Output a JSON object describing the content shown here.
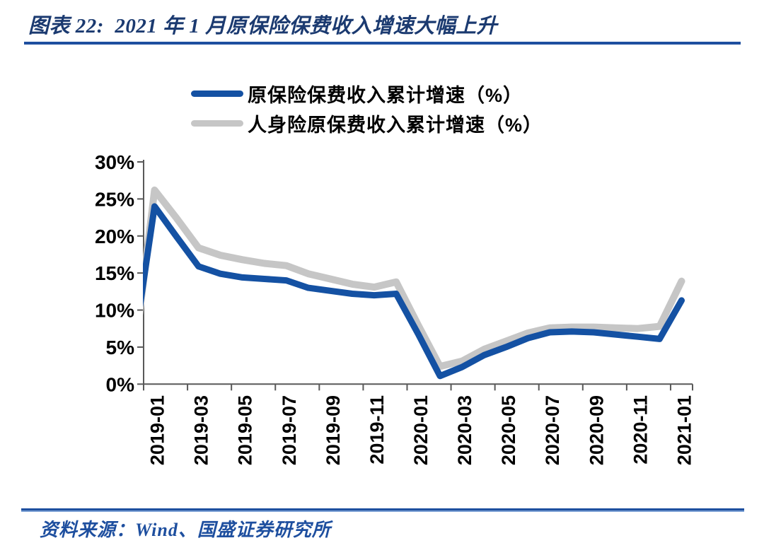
{
  "header": {
    "title": "图表 22:  2021 年 1 月原保险保费收入增速大幅上升"
  },
  "footer": {
    "source_label": "资料来源：Wind、国盛证券研究所"
  },
  "colors": {
    "accent_blue": "#1e4f9f",
    "title_navy": "#1b3a70",
    "line_blue": "#1451a3",
    "line_gray": "#c6c6c6",
    "axis_gray": "#595959",
    "label_black": "#000000"
  },
  "chart_data": {
    "type": "line",
    "title": "图表 22: 2021 年 1 月原保险保费收入增速大幅上升",
    "x": [
      "2019-01",
      "2019-02",
      "2019-03",
      "2019-04",
      "2019-05",
      "2019-06",
      "2019-07",
      "2019-08",
      "2019-09",
      "2019-10",
      "2019-11",
      "2019-12",
      "2020-01",
      "2020-02",
      "2020-03",
      "2020-04",
      "2020-05",
      "2020-06",
      "2020-07",
      "2020-08",
      "2020-09",
      "2020-10",
      "2020-11",
      "2020-12",
      "2021-01"
    ],
    "x_tick_labels": [
      "2019-01",
      "2019-03",
      "2019-05",
      "2019-07",
      "2019-09",
      "2019-11",
      "2020-01",
      "2020-03",
      "2020-05",
      "2020-07",
      "2020-09",
      "2020-11",
      "2021-01"
    ],
    "y_ticks": [
      "0%",
      "5%",
      "10%",
      "15%",
      "20%",
      "25%",
      "30%"
    ],
    "ylim": [
      0,
      30
    ],
    "grid": false,
    "legend_position": "top-center",
    "series": [
      {
        "name": "原保险保费收入累计增速（%）",
        "color": "#1451a3",
        "stroke_width": 9,
        "lead_in": {
          "x": "2018-12",
          "value": 3.9
        },
        "values": [
          24.0,
          19.9,
          15.9,
          14.9,
          14.4,
          14.2,
          14.0,
          13.0,
          12.6,
          12.2,
          12.0,
          12.2,
          6.8,
          1.1,
          2.3,
          3.9,
          5.0,
          6.2,
          7.0,
          7.1,
          7.0,
          6.7,
          6.4,
          6.1,
          11.3
        ]
      },
      {
        "name": "人身险原保费收入累计增速（%）",
        "color": "#c6c6c6",
        "stroke_width": 10,
        "lead_in": {
          "x": "2018-12",
          "value": 1.9
        },
        "values": [
          26.2,
          22.4,
          18.4,
          17.4,
          16.8,
          16.3,
          16.0,
          14.9,
          14.2,
          13.5,
          13.1,
          13.8,
          8.0,
          2.4,
          3.1,
          4.7,
          5.8,
          6.9,
          7.6,
          7.7,
          7.7,
          7.6,
          7.5,
          7.8,
          13.9
        ]
      }
    ]
  }
}
